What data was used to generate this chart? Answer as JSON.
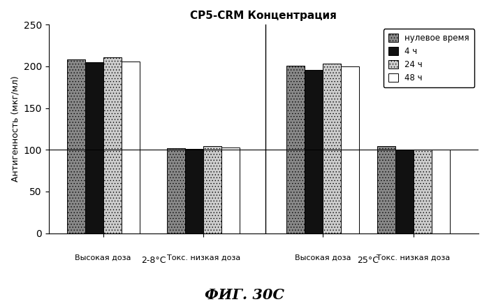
{
  "title": "CP5-CRM Концентрация",
  "ylabel": "Антигенность (мкг/мл)",
  "figcaption": "ФИГ. 30C",
  "ylim": [
    0,
    250
  ],
  "yticks": [
    0,
    50,
    100,
    150,
    200,
    250
  ],
  "hline_y": 100,
  "groups": [
    {
      "label": "Высокая доза"
    },
    {
      "label": "Токс. низкая доза"
    },
    {
      "label": "Высокая доза"
    },
    {
      "label": "Токс. низкая доза"
    }
  ],
  "series": [
    {
      "name": "нулевое время",
      "color": "#888888",
      "hatch": "....",
      "values": [
        208,
        102,
        201,
        104
      ]
    },
    {
      "name": "4 ч",
      "color": "#111111",
      "hatch": "",
      "values": [
        205,
        101,
        196,
        100
      ]
    },
    {
      "name": "24 ч",
      "color": "#cccccc",
      "hatch": "....",
      "values": [
        211,
        104,
        203,
        100
      ]
    },
    {
      "name": "48 ч",
      "color": "#ffffff",
      "hatch": "",
      "values": [
        206,
        103,
        200,
        100
      ]
    }
  ],
  "group_positions": [
    0.42,
    1.47,
    2.72,
    3.67
  ],
  "n_series": 4,
  "n_groups": 4,
  "bar_width": 0.19,
  "temp_label_2_8": "2-8°С",
  "temp_label_25": "25°С",
  "background_color": "#ffffff",
  "legend_labels": [
    "нулевое время",
    "4 ч",
    "24 ч",
    "48 ч"
  ],
  "legend_colors": [
    "#888888",
    "#111111",
    "#cccccc",
    "#ffffff"
  ],
  "legend_hatches": [
    "....",
    "",
    "....",
    ""
  ],
  "separator_x": 2.12,
  "xlim": [
    -0.15,
    4.35
  ]
}
